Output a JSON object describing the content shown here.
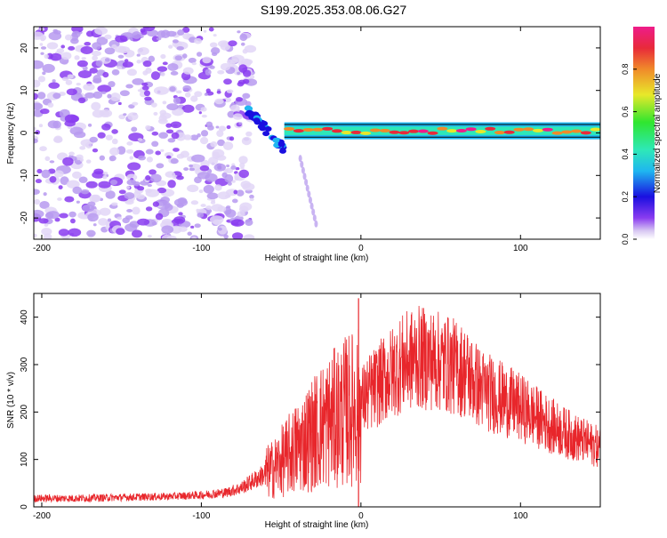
{
  "title": "S199.2025.353.08.06.G27",
  "colors": {
    "snr_line": "#e8262b",
    "frame": "#000000",
    "colormap": [
      "#ffffff",
      "#d7c7f2",
      "#8a3cf0",
      "#1a0fe0",
      "#1fb6f0",
      "#2ee8b8",
      "#2fe62f",
      "#e8e82a",
      "#f08a2a",
      "#e82a3a",
      "#ee1c8a"
    ]
  },
  "chart_data": [
    {
      "type": "heatmap",
      "title": "S199.2025.353.08.06.G27",
      "xlabel": "Height of straight line (km)",
      "ylabel": "Frequency (Hz)",
      "xlim": [
        -205,
        150
      ],
      "ylim": [
        -25,
        25
      ],
      "x_ticks": [
        -200,
        -100,
        0,
        100
      ],
      "x_tick_labels": [
        "-200",
        "-100",
        "0",
        "100"
      ],
      "y_ticks": [
        20,
        10,
        0,
        -10,
        -20
      ],
      "y_tick_labels": [
        "20",
        "10",
        "0",
        "-10",
        "-20"
      ],
      "colorbar": {
        "label": "Normalized spectral amplitude",
        "range": [
          0,
          1
        ],
        "ticks": [
          0.0,
          0.2,
          0.4,
          0.6,
          0.8
        ],
        "tick_labels": [
          "0.0",
          "0.2",
          "0.4",
          "0.6",
          "0.8"
        ]
      },
      "features": [
        {
          "name": "noise field",
          "x_range": [
            -205,
            -68
          ],
          "freq_range": [
            -25,
            25
          ],
          "amplitude": 0.15
        },
        {
          "name": "signal onset",
          "x_range": [
            -72,
            -48
          ],
          "freq_range": [
            -5,
            8
          ],
          "amplitude": 0.45
        },
        {
          "name": "tone track",
          "x_range": [
            -48,
            150
          ],
          "freq": 0.5,
          "amplitude": 0.95
        }
      ]
    },
    {
      "type": "line",
      "title": "",
      "xlabel": "Height of straight line (km)",
      "ylabel": "SNR (10 * v/v)",
      "xlim": [
        -205,
        150
      ],
      "ylim": [
        0,
        450
      ],
      "x_ticks": [
        -200,
        -100,
        0,
        100
      ],
      "x_tick_labels": [
        "-200",
        "-100",
        "0",
        "100"
      ],
      "y_ticks": [
        0,
        100,
        200,
        300,
        400
      ],
      "y_tick_labels": [
        "0",
        "100",
        "200",
        "300",
        "400"
      ],
      "series": [
        {
          "name": "SNR",
          "x": [
            -205,
            -180,
            -150,
            -120,
            -100,
            -85,
            -75,
            -65,
            -55,
            -45,
            -35,
            -25,
            -15,
            -8,
            -2,
            0,
            5,
            15,
            25,
            35,
            45,
            55,
            65,
            75,
            90,
            105,
            120,
            135,
            150
          ],
          "y": [
            18,
            18,
            20,
            22,
            25,
            30,
            40,
            60,
            80,
            110,
            140,
            170,
            190,
            205,
            210,
            220,
            240,
            270,
            300,
            315,
            310,
            300,
            285,
            250,
            225,
            200,
            170,
            145,
            125
          ],
          "spikes": [
            {
              "x": -1.5,
              "y": 440
            }
          ]
        }
      ]
    }
  ]
}
